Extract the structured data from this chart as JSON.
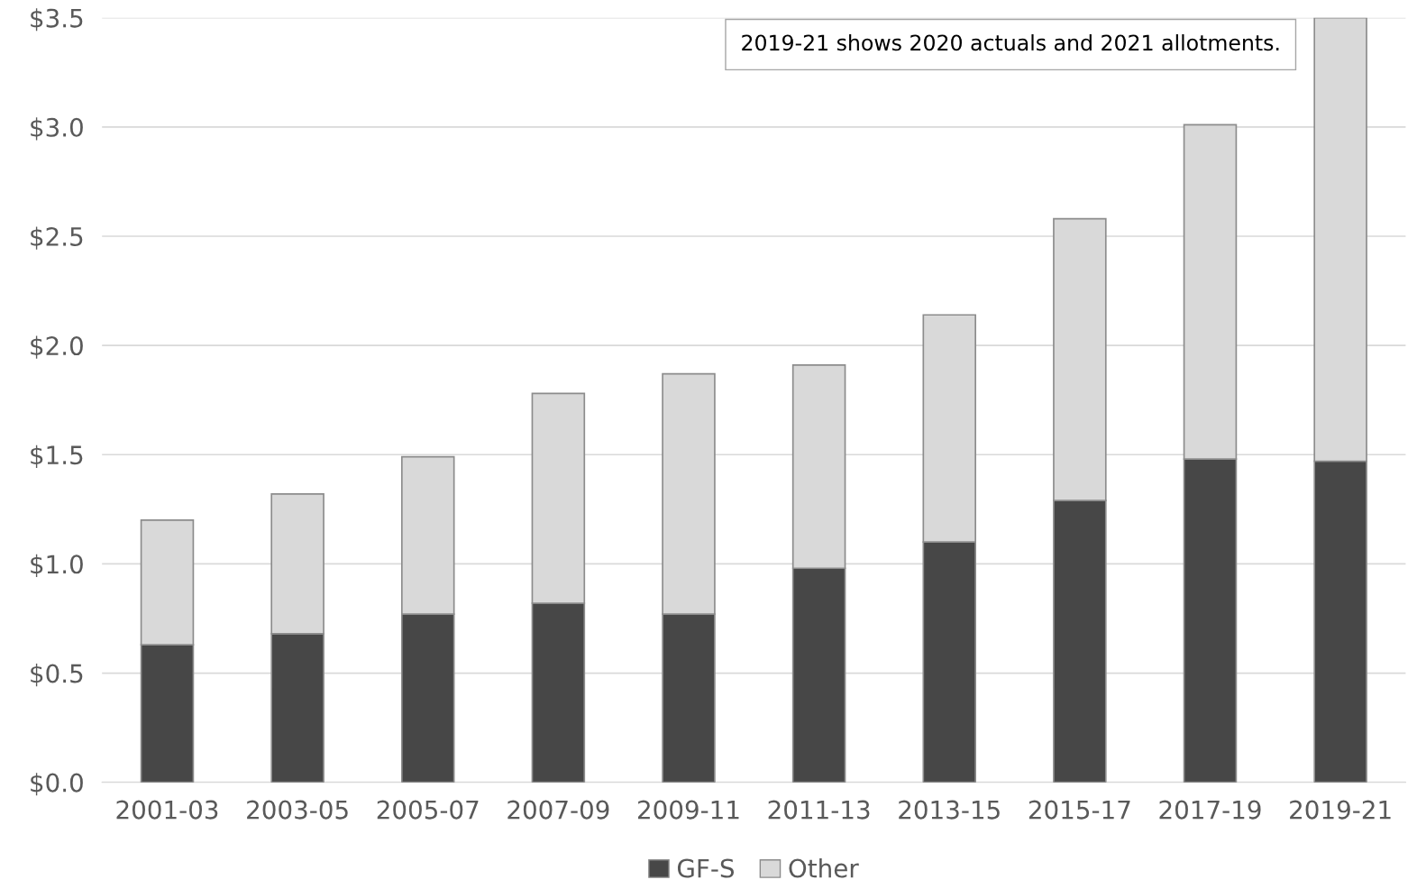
{
  "chart_data": {
    "type": "bar",
    "stacked": true,
    "categories": [
      "2001-03",
      "2003-05",
      "2005-07",
      "2007-09",
      "2009-11",
      "2011-13",
      "2013-15",
      "2015-17",
      "2017-19",
      "2019-21"
    ],
    "series": [
      {
        "name": "GF-S",
        "color": "#474747",
        "values": [
          0.63,
          0.68,
          0.77,
          0.82,
          0.77,
          0.98,
          1.1,
          1.29,
          1.48,
          1.47
        ]
      },
      {
        "name": "Other",
        "color": "#d9d9d9",
        "values": [
          0.57,
          0.64,
          0.72,
          0.96,
          1.1,
          0.93,
          1.04,
          1.29,
          1.53,
          2.03
        ]
      }
    ],
    "ylim": [
      0,
      3.5
    ],
    "yticks": [
      {
        "value": 0,
        "label": "$0.0"
      },
      {
        "value": 0.5,
        "label": "$0.5"
      },
      {
        "value": 1.0,
        "label": "$1.0"
      },
      {
        "value": 1.5,
        "label": "$1.5"
      },
      {
        "value": 2.0,
        "label": "$2.0"
      },
      {
        "value": 2.5,
        "label": "$2.5"
      },
      {
        "value": 3.0,
        "label": "$3.0"
      },
      {
        "value": 3.5,
        "label": "$3.5"
      }
    ],
    "grid": "y",
    "legend": "bottom",
    "annotations": [
      "2019-21 shows 2020 actuals and 2021 allotments."
    ]
  }
}
